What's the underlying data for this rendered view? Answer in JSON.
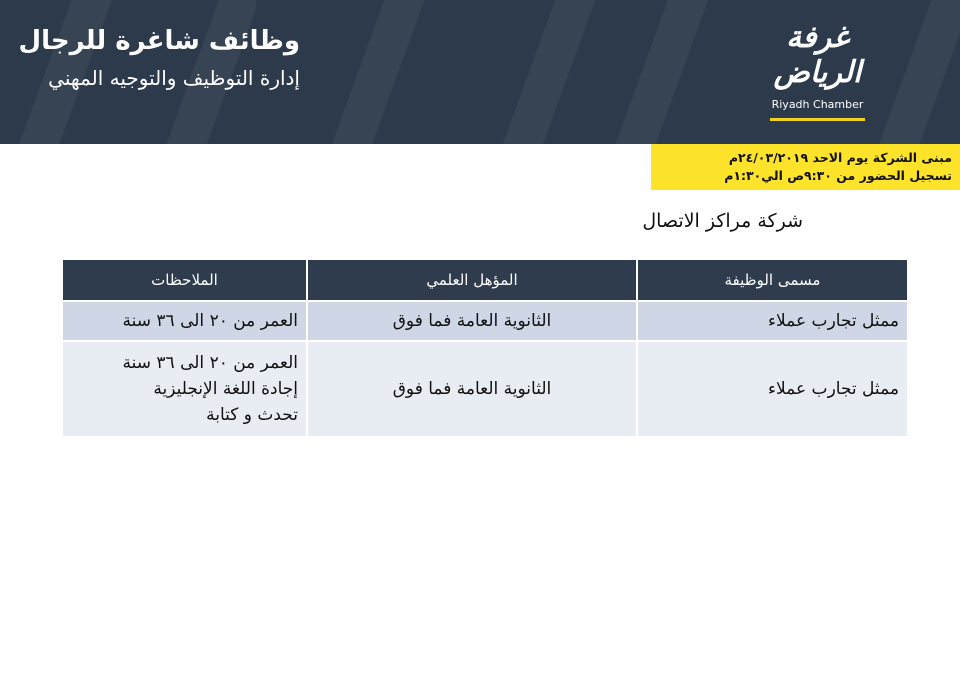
{
  "banner": {
    "title": "وظائف شاغرة للرجال",
    "subtitle": "إدارة التوظيف والتوجيه المهني",
    "logo_ar": "غرفة الرياض",
    "logo_en": "Riyadh Chamber",
    "background_color": "#2c3a4b",
    "accent_color": "#f0d320"
  },
  "notice": {
    "line1": "مبنى الشركة يوم الاحد ٢٤/٠٣/٢٠١٩م",
    "line2": "تسجيل الحضور من ٩:٣٠ص الي١:٣٠م",
    "background_color": "#fde42a"
  },
  "company": "شركة مراكز الاتصال",
  "table": {
    "headers": [
      "مسمى الوظيفة",
      "المؤهل العلمي",
      "الملاحظات"
    ],
    "rows": [
      {
        "title": "ممثل تجارب عملاء",
        "qualification": "الثانوية العامة فما فوق",
        "notes": [
          "العمر من ٢٠ الى ٣٦ سنة"
        ]
      },
      {
        "title": "ممثل تجارب عملاء",
        "qualification": "الثانوية العامة فما فوق",
        "notes": [
          "العمر من ٢٠ الى ٣٦ سنة",
          "إجادة اللغة الإنجليزية",
          "تحدث و كتابة"
        ]
      }
    ]
  }
}
